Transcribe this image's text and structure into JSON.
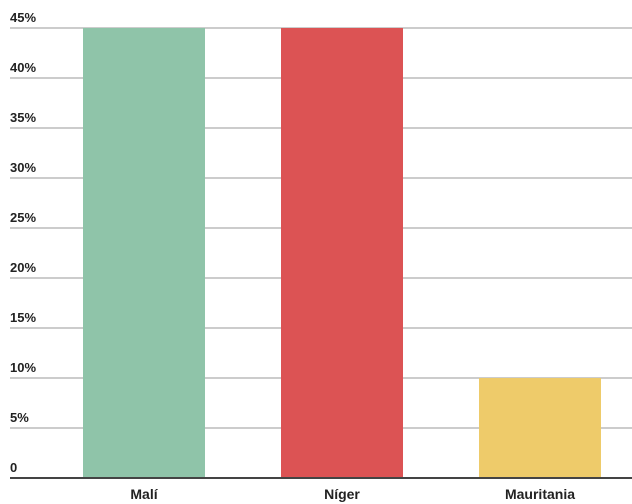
{
  "chart_data": {
    "type": "bar",
    "categories": [
      "Malí",
      "Níger",
      "Mauritania"
    ],
    "values": [
      45,
      45,
      10
    ],
    "colors": [
      "#8fc4a9",
      "#dc5354",
      "#eecb6a"
    ],
    "yticks": [
      "0",
      "5%",
      "10%",
      "15%",
      "20%",
      "25%",
      "30%",
      "35%",
      "40%",
      "45%"
    ],
    "ytick_values": [
      0,
      5,
      10,
      15,
      20,
      25,
      30,
      35,
      40,
      45
    ],
    "ylim": [
      0,
      45
    ],
    "grid": true,
    "legend": "none",
    "title": "",
    "xlabel": "",
    "ylabel": ""
  }
}
